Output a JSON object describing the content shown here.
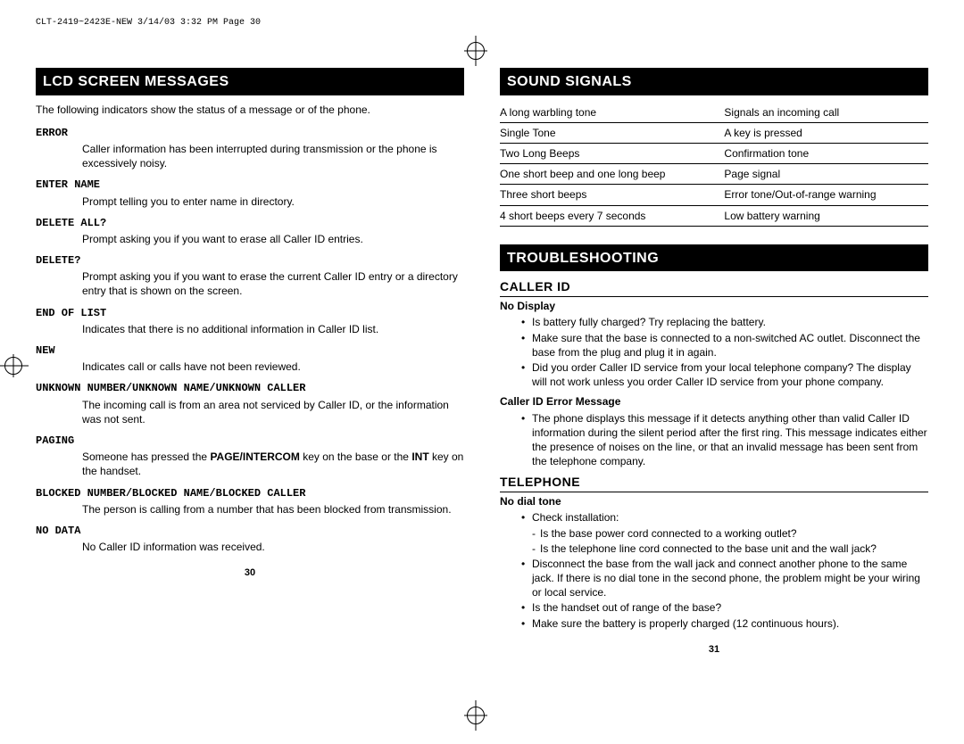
{
  "header_line": "CLT-2419~2423E-NEW  3/14/03  3:32 PM  Page 30",
  "left": {
    "section_title": "LCD SCREEN MESSAGES",
    "intro": "The following indicators show the status of a message or of the phone.",
    "messages": [
      {
        "term": "ERROR",
        "desc": "Caller information has been interrupted during transmission or the phone is excessively noisy."
      },
      {
        "term": "ENTER NAME",
        "desc": "Prompt telling you to enter name in directory."
      },
      {
        "term": "DELETE ALL?",
        "desc": "Prompt asking you if you want to erase all Caller ID entries."
      },
      {
        "term": "DELETE?",
        "desc": "Prompt asking you if you want to erase the current Caller ID entry or a directory entry that is shown on the screen."
      },
      {
        "term": "END OF LIST",
        "desc": "Indicates that there is no additional information in Caller ID list."
      },
      {
        "term": "NEW",
        "desc": "Indicates call or calls have not been reviewed."
      },
      {
        "term": "UNKNOWN NUMBER/UNKNOWN NAME/UNKNOWN CALLER",
        "desc": "The incoming call is from an area not serviced by Caller ID, or the information was not sent."
      },
      {
        "term": "PAGING",
        "desc_html": "Someone has pressed the <b>PAGE/INTERCOM</b> key on the base or the <b>INT</b> key on the handset."
      },
      {
        "term": "BLOCKED NUMBER/BLOCKED NAME/BLOCKED CALLER",
        "desc": "The person is calling from a number that has been blocked from transmission."
      },
      {
        "term": "NO DATA",
        "desc": "No Caller ID information was received."
      }
    ],
    "page_num": "30"
  },
  "right": {
    "sound_title": "SOUND SIGNALS",
    "signals": [
      {
        "l": "A long warbling tone",
        "r": "Signals an incoming call"
      },
      {
        "l": "Single Tone",
        "r": "A key is pressed"
      },
      {
        "l": "Two Long Beeps",
        "r": "Confirmation tone"
      },
      {
        "l": "One short beep and one long beep",
        "r": "Page signal"
      },
      {
        "l": "Three short beeps",
        "r": "Error tone/Out-of-range warning"
      },
      {
        "l": "4 short beeps every 7 seconds",
        "r": "Low battery warning"
      }
    ],
    "trouble_title": "TROUBLESHOOTING",
    "caller_id": {
      "header": "CALLER ID",
      "no_display": {
        "topic": "No Display",
        "bullets": [
          "Is battery fully charged? Try replacing the battery.",
          "Make sure that the base is connected to a non-switched AC outlet. Disconnect the base from the plug and plug it in again.",
          "Did you order Caller ID service from your local telephone company? The display will not work unless you order Caller ID service from your phone company."
        ]
      },
      "error_msg": {
        "topic": "Caller ID Error Message",
        "bullets": [
          "The phone displays this message if it detects anything other than valid Caller ID information during the silent period after the first ring. This message indicates either the presence of noises on the line, or that an invalid message has been sent from the telephone company."
        ]
      }
    },
    "telephone": {
      "header": "TELEPHONE",
      "no_dial": {
        "topic": "No dial tone",
        "bullets_pre": "Check installation:",
        "dashes": [
          "Is the base power cord connected to a working outlet?",
          "Is the telephone line cord connected to the base unit and the wall jack?"
        ],
        "bullets_post": [
          "Disconnect the base from the wall jack and connect another phone to the same jack. If there is no dial tone in the second phone, the problem might be your wiring or local service.",
          "Is the handset out of range of the base?",
          "Make sure the battery is properly charged (12 continuous hours)."
        ]
      }
    },
    "page_num": "31"
  }
}
